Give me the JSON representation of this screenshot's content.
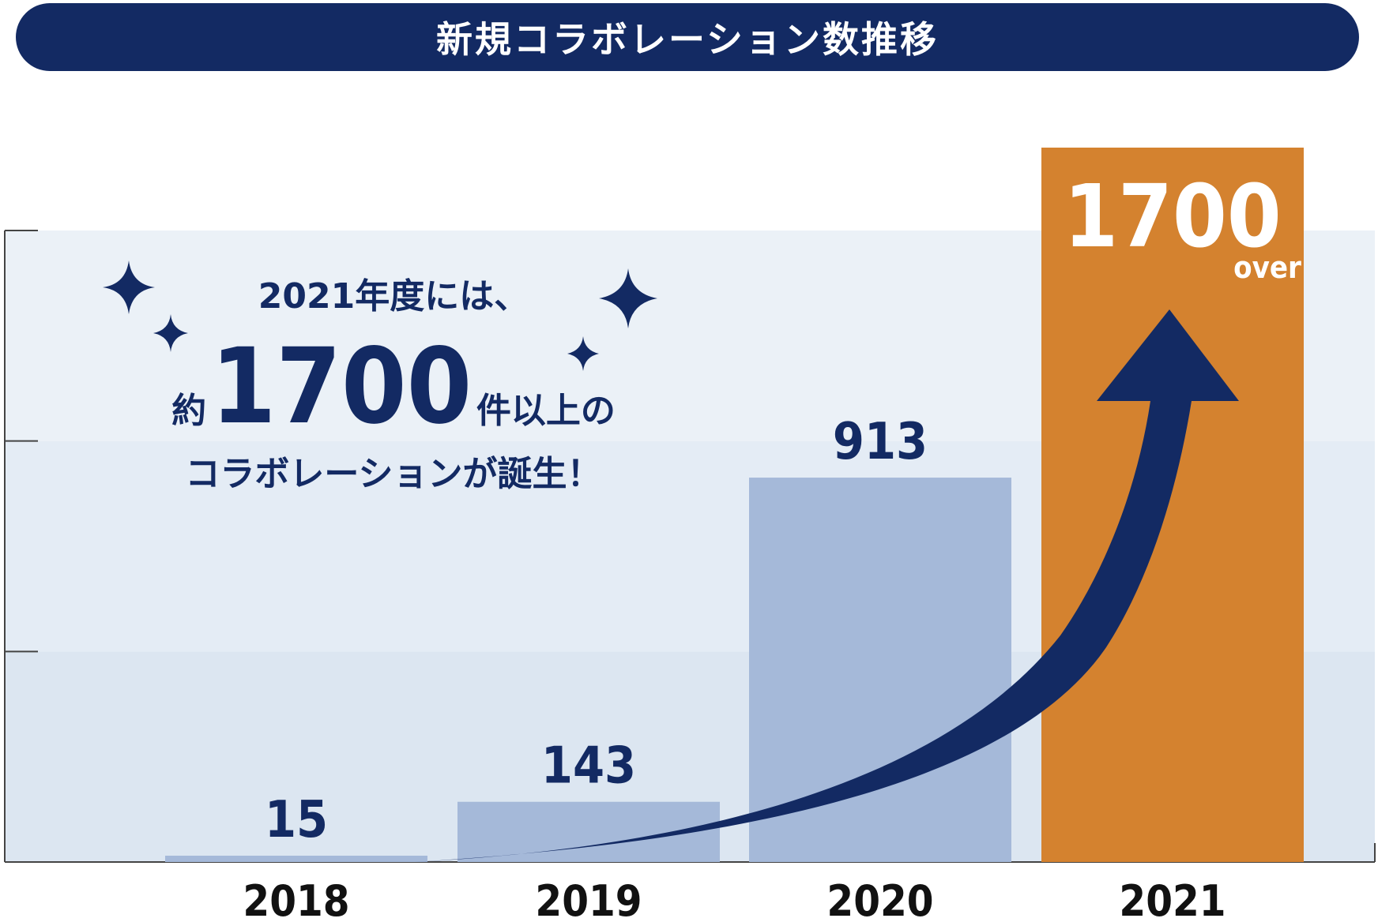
{
  "title": "新規コラボレーション数推移",
  "annotation": {
    "line1": "2021年度には、",
    "prefix": "約",
    "big_number": "1700",
    "suffix": "件以上の",
    "line3": "コラボレーションが誕生！"
  },
  "colors": {
    "navy": "#132a63",
    "bar": "#a5b9d9",
    "highlight_bar": "#d4822f",
    "band_light": "#ebf1f7",
    "band_mid": "#e4ecf5",
    "band_low": "#dce6f1"
  },
  "chart_data": {
    "type": "bar",
    "categories": [
      "2018",
      "2019",
      "2020",
      "2021"
    ],
    "values": [
      15,
      143,
      913,
      1700
    ],
    "data_labels": [
      "15",
      "143",
      "913",
      "1700"
    ],
    "highlight_index": 3,
    "highlight_sublabel": "over",
    "title": "新規コラボレーション数推移",
    "xlabel": "",
    "ylabel": "",
    "ylim": [
      0,
      1500
    ],
    "grid": true,
    "trend_arrow": true
  }
}
